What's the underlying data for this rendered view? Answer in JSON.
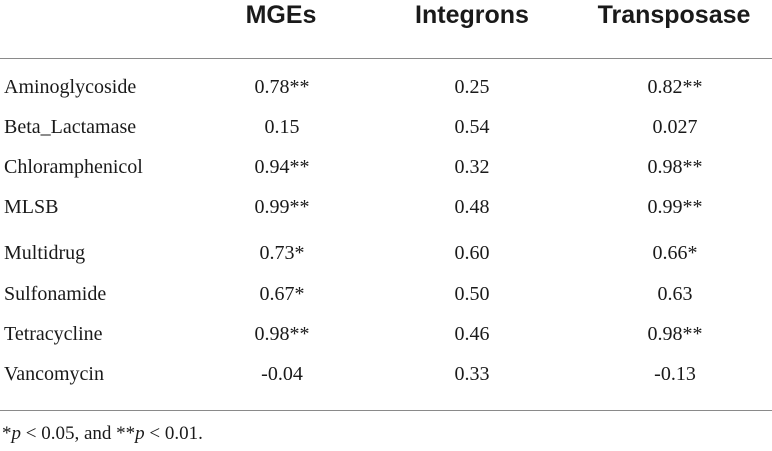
{
  "table": {
    "headers": [
      "MGEs",
      "Integrons",
      "Transposase"
    ],
    "rows": [
      {
        "label": "Aminoglycoside",
        "values": [
          "0.78**",
          "0.25",
          "0.82**"
        ]
      },
      {
        "label": "Beta_Lactamase",
        "values": [
          "0.15",
          "0.54",
          "0.027"
        ]
      },
      {
        "label": "Chloramphenicol",
        "values": [
          "0.94**",
          "0.32",
          "0.98**"
        ]
      },
      {
        "label": "MLSB",
        "values": [
          "0.99**",
          "0.48",
          "0.99**"
        ]
      },
      {
        "label": "Multidrug",
        "values": [
          "0.73*",
          "0.60",
          "0.66*"
        ]
      },
      {
        "label": "Sulfonamide",
        "values": [
          "0.67*",
          "0.50",
          "0.63"
        ]
      },
      {
        "label": "Tetracycline",
        "values": [
          "0.98**",
          "0.46",
          "0.98**"
        ]
      },
      {
        "label": "Vancomycin",
        "values": [
          "-0.04",
          "0.33",
          "-0.13"
        ]
      }
    ]
  },
  "footnote": {
    "part1": "*",
    "p1": "p",
    "part2": " < 0.05, and **",
    "p2": "p",
    "part3": " < 0.01."
  }
}
